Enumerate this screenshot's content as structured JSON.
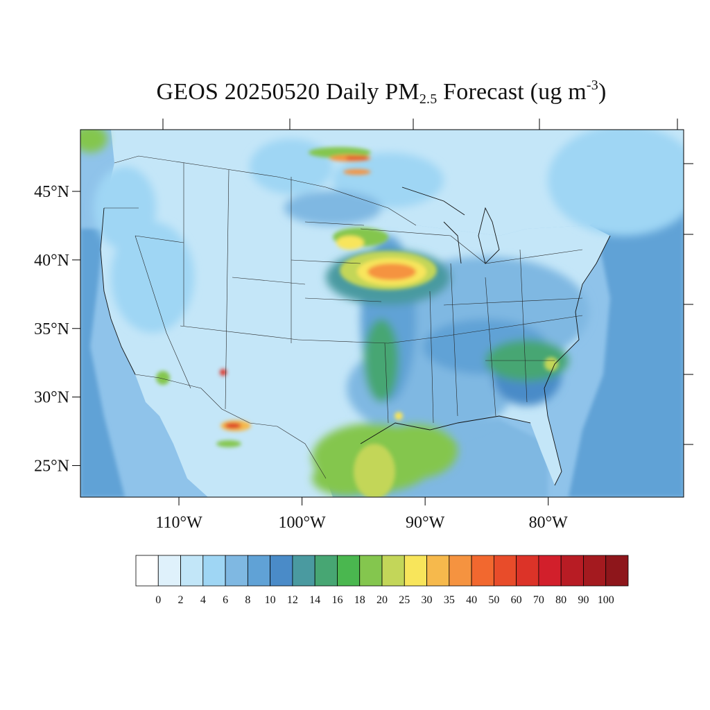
{
  "title": {
    "prefix": "GEOS 20250520 Daily PM",
    "sub": "2.5",
    "middle": " Forecast (ug m",
    "sup": "-3",
    "suffix": ")"
  },
  "map": {
    "lon_range": [
      -118.0,
      -69.0
    ],
    "lat_range": [
      22.7,
      49.5
    ],
    "lat_ticks": [
      {
        "value": 45,
        "label": "45°N"
      },
      {
        "value": 40,
        "label": "40°N"
      },
      {
        "value": 35,
        "label": "35°N"
      },
      {
        "value": 30,
        "label": "30°N"
      },
      {
        "value": 25,
        "label": "25°N"
      }
    ],
    "lon_ticks": [
      {
        "value": -110,
        "label": "110°W"
      },
      {
        "value": -100,
        "label": "100°W"
      },
      {
        "value": -90,
        "label": "90°W"
      },
      {
        "value": -80,
        "label": "80°W"
      }
    ],
    "ocean_color": "#8fc3ea",
    "land_base_color": "#c4e6f8"
  },
  "colorbar": {
    "levels": [
      "0",
      "2",
      "4",
      "6",
      "8",
      "10",
      "12",
      "14",
      "16",
      "18",
      "20",
      "25",
      "30",
      "35",
      "40",
      "50",
      "60",
      "70",
      "80",
      "90",
      "100"
    ],
    "colors": [
      "#ffffff",
      "#dff1fb",
      "#c2e6f8",
      "#9fd6f4",
      "#7fb8e2",
      "#60a2d6",
      "#4a8bc8",
      "#4a9aa0",
      "#47a673",
      "#4ab74f",
      "#84c64e",
      "#c3d659",
      "#f8e55b",
      "#f6b94c",
      "#f59340",
      "#f2682f",
      "#e84c2a",
      "#dc3328",
      "#d21f2b",
      "#b81c24",
      "#a41a1f",
      "#8e161b"
    ]
  },
  "chart_data": {
    "type": "heatmap",
    "title": "GEOS 20250520 Daily PM2.5 Forecast (ug m-3)",
    "variable": "PM2.5",
    "units": "ug m-3",
    "date": "20250520",
    "colorbar_levels": [
      0,
      2,
      4,
      6,
      8,
      10,
      12,
      14,
      16,
      18,
      20,
      25,
      30,
      35,
      40,
      50,
      60,
      70,
      80,
      90,
      100
    ],
    "hotspots": [
      {
        "lon": -96.0,
        "lat": 39.0,
        "value": 40
      },
      {
        "lon": -97.5,
        "lat": 41.5,
        "value": 30
      },
      {
        "lon": -96.5,
        "lat": 47.5,
        "value": 60
      },
      {
        "lon": -107.5,
        "lat": 28.0,
        "value": 70
      },
      {
        "lon": -108.5,
        "lat": 32.0,
        "value": 70
      },
      {
        "lon": -95.0,
        "lat": 28.5,
        "value": 30
      },
      {
        "lon": -80.0,
        "lat": 33.0,
        "value": 25
      },
      {
        "lon": -113.0,
        "lat": 31.0,
        "value": 25
      }
    ]
  }
}
